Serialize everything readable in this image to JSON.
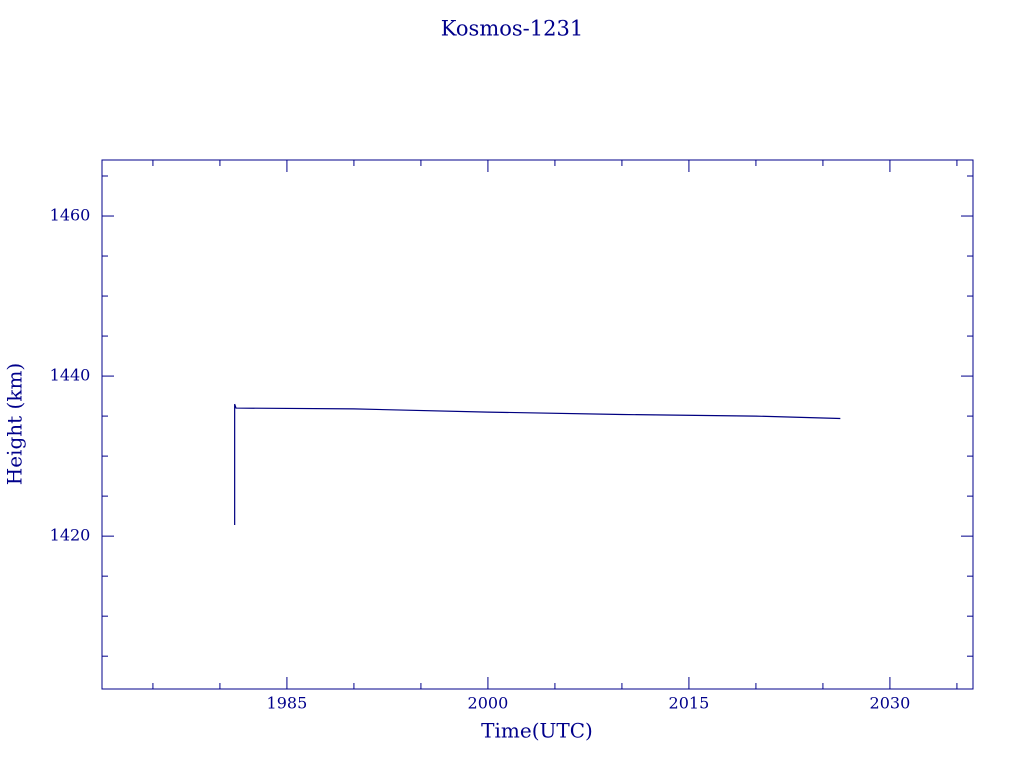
{
  "chart_data": {
    "type": "line",
    "title": "Kosmos-1231",
    "x_label": "Time(UTC)",
    "y_label": "Height (km)",
    "x": [
      1981.1,
      1981.1,
      1981.2,
      1990,
      2000,
      2010,
      2020,
      2026.3
    ],
    "series": [
      {
        "color": "#000080",
        "values": [
          1421.4,
          1436.5,
          1436.0,
          1435.9,
          1435.5,
          1435.2,
          1435.0,
          1434.7
        ]
      }
    ],
    "xlim": [
      1971.2,
      2036.2
    ],
    "xticks": [
      1985,
      2000,
      2015,
      2030
    ],
    "x_minor_ticks": [
      1975,
      1980,
      1990,
      1995,
      2005,
      2010,
      2020,
      2025,
      2035
    ],
    "ylim": [
      1400.9,
      1467
    ],
    "yticks": [
      1420,
      1440,
      1460
    ],
    "y_minor_ticks": [
      1405,
      1410,
      1415,
      1425,
      1430,
      1435,
      1445,
      1450,
      1455,
      1465
    ],
    "color": "#00008b",
    "grid": false
  }
}
